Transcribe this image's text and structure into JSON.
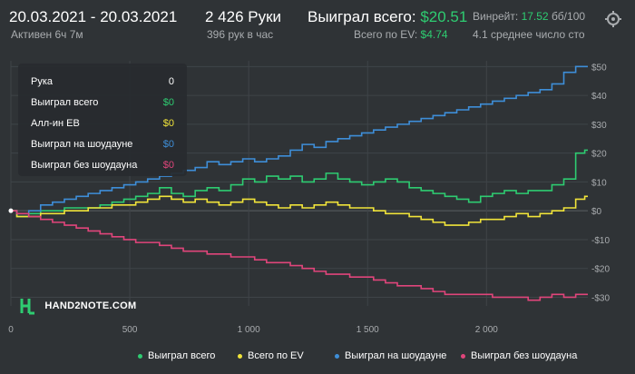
{
  "header": {
    "date_range": "20.03.2021 - 20.03.2021",
    "active": "Активен 6ч 7м",
    "hands": "2 426 Руки",
    "hands_per_hour": "396 рук в час",
    "won_total_label": "Выиграл всего:",
    "won_total_value": "$20.51",
    "ev_label": "Всего по EV:",
    "ev_value": "$4.74",
    "winrate_label": "Винрейт:",
    "winrate_value": "17.52",
    "winrate_unit": "бб/100",
    "avg_stack": "4.1 среднее число сто"
  },
  "tooltip": {
    "rows": [
      {
        "label": "Рука",
        "value": "0",
        "color": "#ffffff"
      },
      {
        "label": "Выиграл всего",
        "value": "$0",
        "color": "#2ecc71"
      },
      {
        "label": "Алл-ин EB",
        "value": "$0",
        "color": "#f1e43a"
      },
      {
        "label": "Выиграл на шоудауне",
        "value": "$0",
        "color": "#3e8ed8"
      },
      {
        "label": "Выиграл без шоудауна",
        "value": "$0",
        "color": "#e0457b"
      }
    ]
  },
  "logo": "HAND2NOTE.COM",
  "colors": {
    "won_total": "#2ecc71",
    "ev": "#f1e43a",
    "showdown": "#3e8ed8",
    "non_showdown": "#e0457b"
  },
  "chart_data": {
    "type": "line",
    "xlim": [
      0,
      2426
    ],
    "ylim": [
      -33,
      52
    ],
    "x_ticks": [
      0,
      500,
      1000,
      1500,
      2000
    ],
    "x_tick_labels": [
      "0",
      "500",
      "1 000",
      "1 500",
      "2 000"
    ],
    "y_ticks": [
      50,
      40,
      30,
      20,
      10,
      0,
      -10,
      -20,
      -30
    ],
    "y_tick_labels": [
      "$50",
      "$40",
      "$30",
      "$20",
      "$10",
      "$0",
      "-$10",
      "-$20",
      "-$30"
    ],
    "grid": true,
    "legend_position": "bottom",
    "series": [
      {
        "name": "Выиграл всего",
        "color": "#2ecc71",
        "x": [
          0,
          50,
          100,
          150,
          200,
          250,
          300,
          350,
          400,
          450,
          500,
          550,
          600,
          650,
          700,
          750,
          800,
          850,
          900,
          950,
          1000,
          1050,
          1100,
          1150,
          1200,
          1250,
          1300,
          1350,
          1400,
          1450,
          1500,
          1550,
          1600,
          1650,
          1700,
          1750,
          1800,
          1850,
          1900,
          1950,
          2000,
          2050,
          2100,
          2150,
          2200,
          2250,
          2300,
          2350,
          2400,
          2426
        ],
        "values": [
          0,
          -2,
          -1,
          0,
          0,
          1,
          1,
          1,
          2,
          3,
          4,
          5,
          6,
          8,
          6,
          5,
          7,
          8,
          7,
          9,
          11,
          10,
          12,
          11,
          12,
          10,
          11,
          13,
          11,
          10,
          9,
          10,
          11,
          10,
          8,
          7,
          6,
          5,
          4,
          3,
          5,
          6,
          7,
          6,
          7,
          7,
          9,
          11,
          20,
          21
        ]
      },
      {
        "name": "Всего по EV",
        "color": "#f1e43a",
        "x": [
          0,
          50,
          100,
          150,
          200,
          250,
          300,
          350,
          400,
          450,
          500,
          550,
          600,
          650,
          700,
          750,
          800,
          850,
          900,
          950,
          1000,
          1050,
          1100,
          1150,
          1200,
          1250,
          1300,
          1350,
          1400,
          1450,
          1500,
          1550,
          1600,
          1650,
          1700,
          1750,
          1800,
          1850,
          1900,
          1950,
          2000,
          2050,
          2100,
          2150,
          2200,
          2250,
          2300,
          2350,
          2400,
          2426
        ],
        "values": [
          0,
          -2,
          -2,
          -1,
          -1,
          0,
          0,
          1,
          1,
          2,
          2,
          3,
          4,
          5,
          4,
          3,
          4,
          3,
          2,
          3,
          4,
          3,
          2,
          1,
          2,
          1,
          2,
          3,
          2,
          1,
          1,
          0,
          -1,
          -1,
          -2,
          -3,
          -4,
          -5,
          -5,
          -4,
          -3,
          -3,
          -2,
          -1,
          -2,
          -1,
          0,
          1,
          4,
          5
        ]
      },
      {
        "name": "Выиграл на шоудауне",
        "color": "#3e8ed8",
        "x": [
          0,
          50,
          100,
          150,
          200,
          250,
          300,
          350,
          400,
          450,
          500,
          550,
          600,
          650,
          700,
          750,
          800,
          850,
          900,
          950,
          1000,
          1050,
          1100,
          1150,
          1200,
          1250,
          1300,
          1350,
          1400,
          1450,
          1500,
          1550,
          1600,
          1650,
          1700,
          1750,
          1800,
          1850,
          1900,
          1950,
          2000,
          2050,
          2100,
          2150,
          2200,
          2250,
          2300,
          2350,
          2400,
          2426
        ],
        "values": [
          0,
          -1,
          0,
          2,
          3,
          4,
          5,
          6,
          7,
          8,
          9,
          10,
          11,
          12,
          13,
          14,
          15,
          17,
          16,
          17,
          18,
          17,
          18,
          19,
          21,
          23,
          22,
          24,
          25,
          26,
          27,
          28,
          29,
          30,
          31,
          32,
          33,
          34,
          35,
          36,
          37,
          38,
          39,
          40,
          41,
          42,
          44,
          48,
          50,
          50
        ]
      },
      {
        "name": "Выиграл без шоудауна",
        "color": "#e0457b",
        "x": [
          0,
          50,
          100,
          150,
          200,
          250,
          300,
          350,
          400,
          450,
          500,
          550,
          600,
          650,
          700,
          750,
          800,
          850,
          900,
          950,
          1000,
          1050,
          1100,
          1150,
          1200,
          1250,
          1300,
          1350,
          1400,
          1450,
          1500,
          1550,
          1600,
          1650,
          1700,
          1750,
          1800,
          1850,
          1900,
          1950,
          2000,
          2050,
          2100,
          2150,
          2200,
          2250,
          2300,
          2350,
          2400,
          2426
        ],
        "values": [
          0,
          -1,
          -2,
          -3,
          -4,
          -5,
          -6,
          -7,
          -8,
          -9,
          -10,
          -11,
          -11,
          -12,
          -13,
          -14,
          -14,
          -15,
          -15,
          -16,
          -16,
          -17,
          -18,
          -18,
          -19,
          -20,
          -21,
          -22,
          -22,
          -23,
          -23,
          -24,
          -25,
          -26,
          -26,
          -27,
          -28,
          -29,
          -29,
          -29,
          -29,
          -30,
          -30,
          -30,
          -31,
          -30,
          -29,
          -30,
          -29,
          -29
        ]
      }
    ]
  }
}
